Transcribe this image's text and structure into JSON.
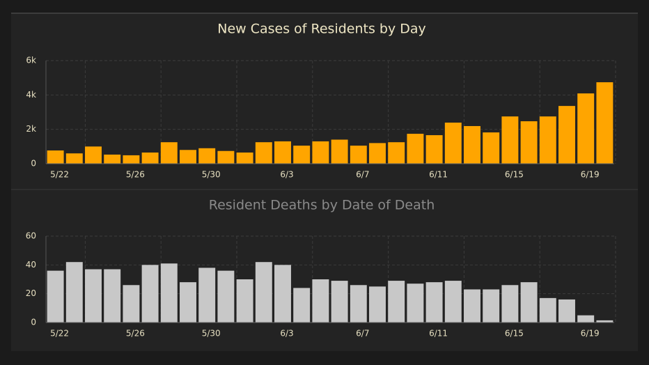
{
  "chart_data": [
    {
      "type": "bar",
      "title": "New Cases of Residents by Day",
      "categories": [
        "5/22",
        null,
        null,
        null,
        "5/26",
        null,
        null,
        null,
        "5/30",
        null,
        null,
        null,
        "6/3",
        null,
        null,
        null,
        "6/7",
        null,
        null,
        null,
        "6/11",
        null,
        null,
        null,
        "6/15",
        null,
        null,
        null,
        "6/19",
        null
      ],
      "values": [
        770,
        600,
        1000,
        530,
        490,
        650,
        1250,
        800,
        900,
        740,
        650,
        1250,
        1300,
        1050,
        1300,
        1400,
        1050,
        1200,
        1250,
        1740,
        1660,
        2390,
        2190,
        1820,
        2750,
        2470,
        2750,
        3360,
        4090,
        4740
      ],
      "color": "#ffa500",
      "ylim": [
        0,
        6000
      ],
      "yticks": [
        0,
        {
          "value": 2000,
          "label": "2k"
        },
        {
          "value": 4000,
          "label": "4k"
        },
        {
          "value": 6000,
          "label": "6k"
        }
      ],
      "grid": true
    },
    {
      "type": "bar",
      "title": "Resident Deaths by Date of Death",
      "categories": [
        "5/22",
        null,
        null,
        null,
        "5/26",
        null,
        null,
        null,
        "5/30",
        null,
        null,
        null,
        "6/3",
        null,
        null,
        null,
        "6/7",
        null,
        null,
        null,
        "6/11",
        null,
        null,
        null,
        "6/15",
        null,
        null,
        null,
        "6/19",
        null
      ],
      "values": [
        36,
        42,
        37,
        37,
        26,
        40,
        41,
        28,
        38,
        36,
        30,
        42,
        40,
        24,
        30,
        29,
        26,
        25,
        29,
        27,
        28,
        29,
        23,
        23,
        26,
        28,
        17,
        16,
        5,
        1.5
      ],
      "color": "#c8c8c8",
      "ylim": [
        0,
        60
      ],
      "yticks": [
        0,
        20,
        40,
        60
      ],
      "grid": true
    }
  ]
}
